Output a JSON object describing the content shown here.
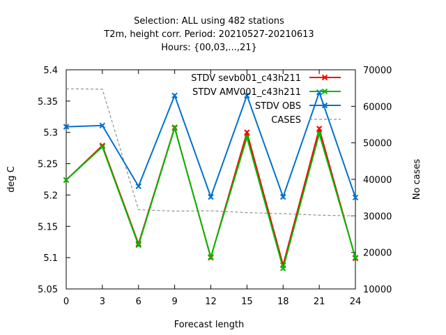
{
  "chart_data": {
    "type": "line",
    "title_lines": [
      "Selection: ALL using   482 stations",
      "T2m, height corr.   Period: 20210527-20210613",
      "Hours: {00,03,...,21}"
    ],
    "xlabel": "Forecast length",
    "ylabel": "deg C",
    "y2label": "No cases",
    "x": [
      0,
      3,
      6,
      9,
      12,
      15,
      18,
      21,
      24
    ],
    "xlim": [
      0,
      24
    ],
    "ylim": [
      5.05,
      5.4
    ],
    "y2lim": [
      10000,
      70000
    ],
    "x_ticks": [
      "0",
      "3",
      "6",
      "9",
      "12",
      "15",
      "18",
      "21",
      "24"
    ],
    "y_ticks": [
      "5.05",
      "5.1",
      "5.15",
      "5.2",
      "5.25",
      "5.3",
      "5.35",
      "5.4"
    ],
    "y2_ticks": [
      "10000",
      "20000",
      "30000",
      "40000",
      "50000",
      "60000",
      "70000"
    ],
    "grid": false,
    "legend_position": "top-right",
    "series": [
      {
        "name": "STDV sevb001_c43h211",
        "axis": "y",
        "color": "#ff0000",
        "marker": "x",
        "values": [
          5.224,
          5.279,
          5.122,
          5.308,
          5.1,
          5.3,
          5.088,
          5.306,
          5.099
        ]
      },
      {
        "name": "STDV AMV001_c43h211",
        "axis": "y",
        "color": "#00bb00",
        "marker": "x",
        "values": [
          5.224,
          5.277,
          5.12,
          5.307,
          5.101,
          5.292,
          5.083,
          5.298,
          5.1
        ]
      },
      {
        "name": "STDV OBS",
        "axis": "y",
        "color": "#0070d0",
        "marker": "x",
        "values": [
          5.309,
          5.311,
          5.214,
          5.359,
          5.197,
          5.359,
          5.197,
          5.364,
          5.196
        ]
      },
      {
        "name": "CASES",
        "axis": "y2",
        "color": "#909090",
        "dashed": true,
        "values": [
          64800,
          64700,
          31700,
          31300,
          31400,
          30900,
          30600,
          30200,
          30000
        ]
      }
    ]
  }
}
